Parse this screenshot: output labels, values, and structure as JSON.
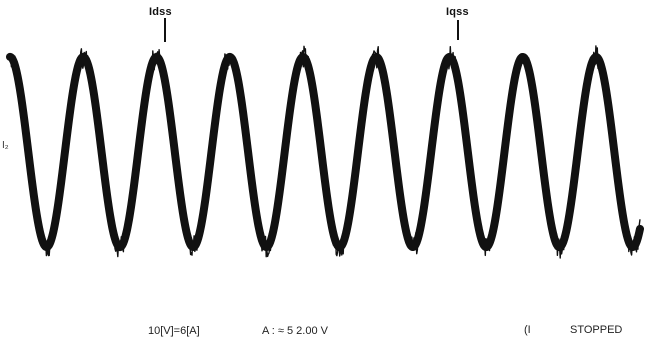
{
  "chart_data": {
    "type": "line",
    "title": "",
    "xlabel": "",
    "ylabel": "",
    "ylim": [
      -1,
      1
    ],
    "grid": false,
    "cycles": 8.6,
    "phase_offset_cycles": 0.25,
    "amplitude": 0.97,
    "noise_amplitude": 0.12,
    "series": [
      {
        "color": "#111111"
      }
    ],
    "markers": [
      {
        "label": "Idss"
      },
      {
        "label": "Iqss"
      }
    ]
  },
  "side_label": "I₂",
  "footer": {
    "scale": "10[V]=6[A]",
    "channel": "A : ≈ 5 2.00 V",
    "status_prefix": "(I",
    "status": "STOPPED"
  }
}
